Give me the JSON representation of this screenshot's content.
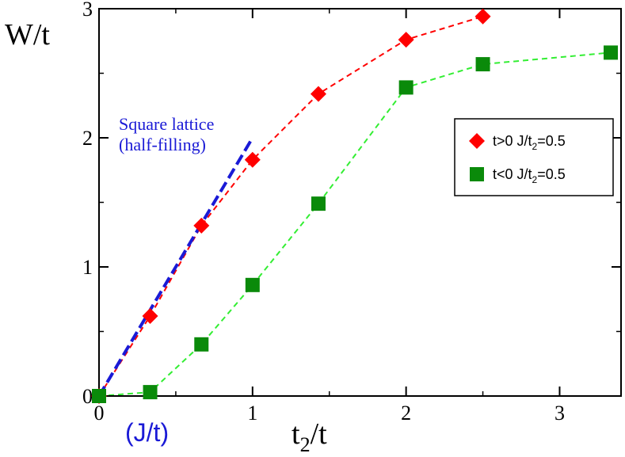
{
  "chart_data": {
    "type": "line",
    "title": "",
    "xlabel": "t",
    "xlabel_sub": "2",
    "xlabel_rest": "/t",
    "ylabel": "W/t",
    "xlim": [
      0,
      3.4
    ],
    "ylim": [
      0,
      3
    ],
    "xticks": [
      0,
      1,
      2,
      3
    ],
    "yticks": [
      0,
      1,
      2,
      3
    ],
    "x_tick_labels": [
      "0",
      "1",
      "2",
      "3"
    ],
    "y_tick_labels": [
      "0",
      "1",
      "2",
      "3"
    ],
    "grid": false,
    "legend_position": "right-middle",
    "series": [
      {
        "name": "t>0  J/t2=0.5",
        "legend_main": "t>0   J/t",
        "legend_sub": "2",
        "legend_rest": "=0.5",
        "marker": "diamond",
        "color": "#ff0000",
        "line_style": "dashed",
        "x": [
          0,
          0.333,
          0.667,
          1.0,
          1.429,
          2.0,
          2.5
        ],
        "y": [
          0,
          0.62,
          1.32,
          1.83,
          2.34,
          2.76,
          2.94
        ]
      },
      {
        "name": "t<0  J/t2=0.5",
        "legend_main": "t<0   J/t",
        "legend_sub": "2",
        "legend_rest": "=0.5",
        "marker": "square",
        "color": "#0a8a0a",
        "line_color": "#33ee33",
        "line_style": "dashed",
        "x": [
          0,
          0.333,
          0.667,
          1.0,
          1.429,
          2.0,
          2.5,
          3.333
        ],
        "y": [
          0,
          0.03,
          0.4,
          0.86,
          1.49,
          2.39,
          2.57,
          2.66
        ]
      },
      {
        "name": "Square lattice (half-filling)",
        "marker": "none",
        "color": "#1a1ad6",
        "line_style": "long-dash",
        "x": [
          0,
          1.0
        ],
        "y": [
          0,
          2.0
        ]
      }
    ],
    "annotations": {
      "square_line1": "Square lattice",
      "square_line2": "(half-filling)",
      "jt": "(J/t)"
    }
  }
}
